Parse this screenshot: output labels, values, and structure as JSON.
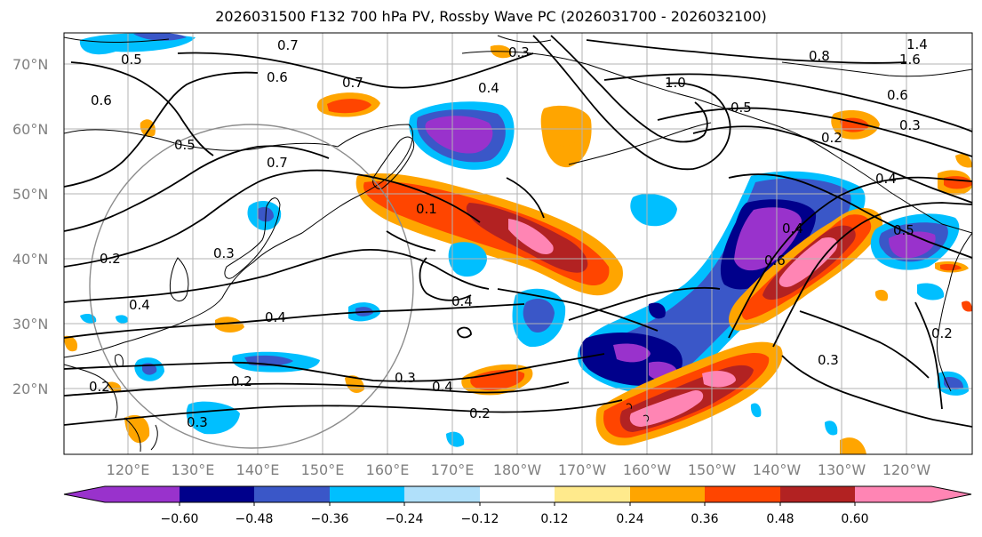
{
  "title": "2026031500 F132 700 hPa PV, Rossby Wave PC (2026031700 - 2026032100)",
  "lat_labels": [
    "70°N",
    "60°N",
    "50°N",
    "40°N",
    "30°N",
    "20°N"
  ],
  "lon_labels": [
    "120°E",
    "130°E",
    "140°E",
    "150°E",
    "160°E",
    "170°E",
    "180°W",
    "170°W",
    "160°W",
    "150°W",
    "140°W",
    "130°W",
    "120°W"
  ],
  "colorbar": {
    "tick_labels": [
      "−0.60",
      "−0.48",
      "−0.36",
      "−0.24",
      "−0.12",
      "0.12",
      "0.24",
      "0.36",
      "0.48",
      "0.60"
    ],
    "tick_values": [
      -0.6,
      -0.48,
      -0.36,
      -0.24,
      -0.12,
      0.12,
      0.24,
      0.36,
      0.48,
      0.6
    ],
    "colors": [
      "#9932cc",
      "#00008b",
      "#3a57c8",
      "#00bfff",
      "#b0e0fa",
      "#ffffff",
      "#ffea8c",
      "#ffa500",
      "#ff4500",
      "#b22222",
      "#ff85b4"
    ]
  },
  "contour_labels": [
    "0.7",
    "0.3",
    "0.8",
    "1.4",
    "1.6",
    "0.5",
    "0.6",
    "0.7",
    "1.0",
    "0.5",
    "0.6",
    "0.3",
    "0.6",
    "0.4",
    "0.2",
    "0.5",
    "0.7",
    "0.4",
    "0.1",
    "0.4",
    "0.6",
    "0.5",
    "0.2",
    "0.3",
    "0.4",
    "0.4",
    "0.4",
    "0.2",
    "0.3",
    "0.4",
    "0.2",
    "0.3",
    "0.2",
    "0.2",
    "0.3"
  ],
  "colors": {
    "coast": "#000000",
    "grid": "#b3b3b3",
    "circle": "#8c8c8c",
    "contour": "#000000"
  }
}
